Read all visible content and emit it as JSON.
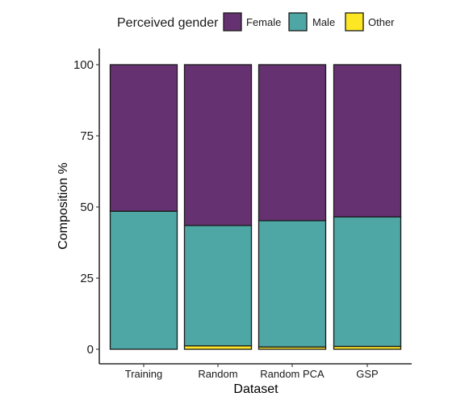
{
  "chart_data": {
    "type": "bar",
    "stacked": true,
    "categories": [
      "Training",
      "Random",
      "Random PCA",
      "GSP"
    ],
    "series": [
      {
        "name": "Other",
        "color": "#fde725",
        "values": [
          0,
          1.2,
          0.8,
          1.0
        ]
      },
      {
        "name": "Male",
        "color": "#4ea6a5",
        "values": [
          48.5,
          42.3,
          44.4,
          45.5
        ]
      },
      {
        "name": "Female",
        "color": "#663171",
        "values": [
          51.5,
          56.5,
          54.8,
          53.5
        ]
      }
    ],
    "legend": {
      "title": "Perceived gender",
      "placement": "top",
      "order": [
        "Female",
        "Male",
        "Other"
      ]
    },
    "xlabel": "Dataset",
    "ylabel": "Composition %",
    "ylim": [
      0,
      100
    ],
    "yticks": [
      0,
      25,
      50,
      75,
      100
    ],
    "grid": false
  }
}
